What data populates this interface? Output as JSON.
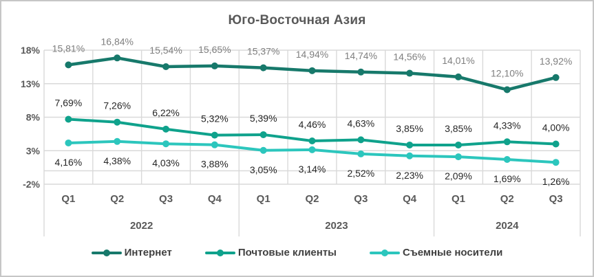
{
  "chart_data": {
    "type": "line",
    "title": "Юго-Восточная Азия",
    "legend_position": "bottom",
    "grid": true,
    "gridline_color": "#d9d9d9",
    "axis_text_color": "#595959",
    "y_axis": {
      "min": -2,
      "max": 18,
      "ticks": [
        {
          "label": "18%",
          "value": 18
        },
        {
          "label": "13%",
          "value": 13
        },
        {
          "label": "8%",
          "value": 8
        },
        {
          "label": "3%",
          "value": 3
        },
        {
          "label": "-2%",
          "value": -2
        }
      ]
    },
    "x_axis": {
      "quarters": [
        "Q1",
        "Q2",
        "Q3",
        "Q4",
        "Q1",
        "Q2",
        "Q3",
        "Q4",
        "Q1",
        "Q2",
        "Q3"
      ],
      "year_groups": [
        {
          "label": "2022",
          "span": 4
        },
        {
          "label": "2023",
          "span": 4
        },
        {
          "label": "2024",
          "span": 3
        }
      ]
    },
    "series": [
      {
        "name": "Интернет",
        "color": "#17796b",
        "label_color": "#7f7f7f",
        "label_position": "above",
        "values": [
          15.81,
          16.84,
          15.54,
          15.65,
          15.37,
          14.94,
          14.74,
          14.56,
          14.01,
          12.1,
          13.92
        ],
        "labels": [
          "15,81%",
          "16,84%",
          "15,54%",
          "15,65%",
          "15,37%",
          "14,94%",
          "14,74%",
          "14,56%",
          "14,01%",
          "12,10%",
          "13,92%"
        ]
      },
      {
        "name": "Почтовые клиенты",
        "color": "#0fa28c",
        "label_color": "#262626",
        "label_position": "above",
        "values": [
          7.69,
          7.26,
          6.22,
          5.32,
          5.39,
          4.46,
          4.63,
          3.85,
          3.85,
          4.33,
          4.0
        ],
        "labels": [
          "7,69%",
          "7,26%",
          "6,22%",
          "5,32%",
          "5,39%",
          "4,46%",
          "4,63%",
          "3,85%",
          "3,85%",
          "4,33%",
          "4,00%"
        ]
      },
      {
        "name": "Съемные носители",
        "color": "#2cc6bd",
        "label_color": "#262626",
        "label_position": "below",
        "values": [
          4.16,
          4.38,
          4.03,
          3.88,
          3.05,
          3.14,
          2.52,
          2.23,
          2.09,
          1.69,
          1.26
        ],
        "labels": [
          "4,16%",
          "4,38%",
          "4,03%",
          "3,88%",
          "3,05%",
          "3,14%",
          "2,52%",
          "2,23%",
          "2,09%",
          "1,69%",
          "1,26%"
        ]
      }
    ]
  }
}
